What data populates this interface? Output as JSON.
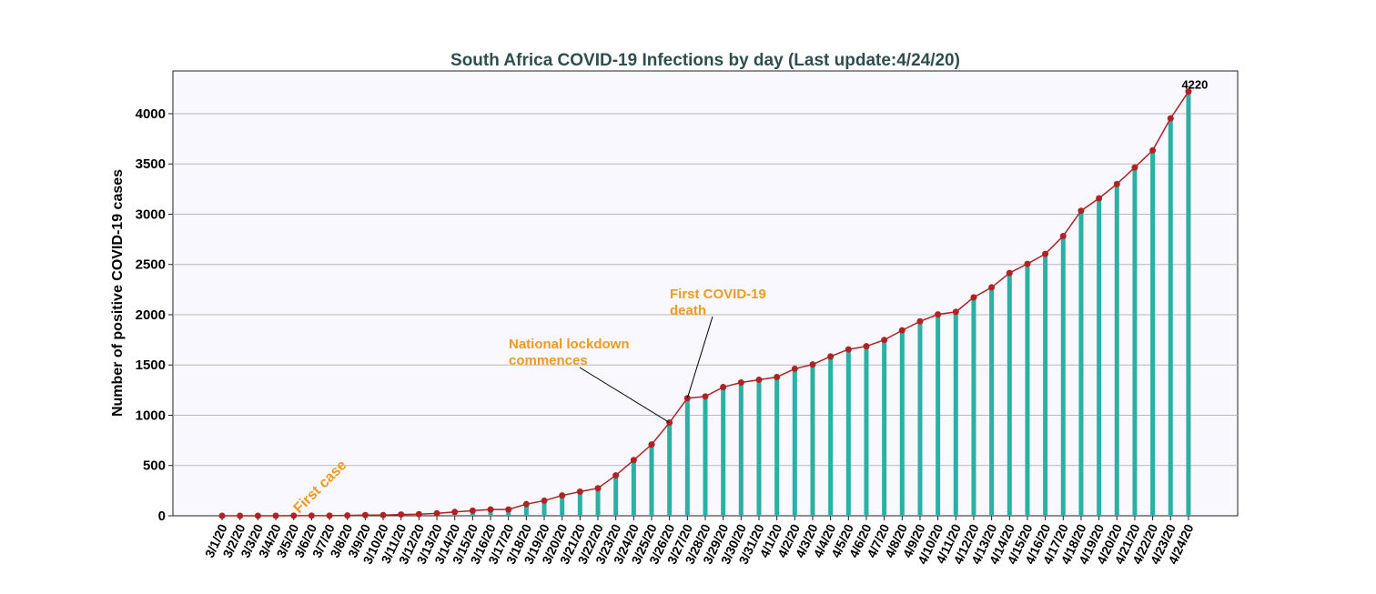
{
  "chart_data": {
    "type": "bar",
    "title": "South Africa COVID-19 Infections by day (Last update:4/24/20)",
    "y_label": "Number of positive COVID-19 cases",
    "categories": [
      "3/1/20",
      "3/2/20",
      "3/3/20",
      "3/4/20",
      "3/5/20",
      "3/6/20",
      "3/7/20",
      "3/8/20",
      "3/9/20",
      "3/10/20",
      "3/11/20",
      "3/12/20",
      "3/13/20",
      "3/14/20",
      "3/15/20",
      "3/16/20",
      "3/17/20",
      "3/18/20",
      "3/19/20",
      "3/20/20",
      "3/21/20",
      "3/22/20",
      "3/23/20",
      "3/24/20",
      "3/25/20",
      "3/26/20",
      "3/27/20",
      "3/28/20",
      "3/29/20",
      "3/30/20",
      "3/31/20",
      "4/1/20",
      "4/2/20",
      "4/3/20",
      "4/4/20",
      "4/5/20",
      "4/6/20",
      "4/7/20",
      "4/8/20",
      "4/9/20",
      "4/10/20",
      "4/11/20",
      "4/12/20",
      "4/13/20",
      "4/14/20",
      "4/15/20",
      "4/16/20",
      "4/17/20",
      "4/18/20",
      "4/19/20",
      "4/20/20",
      "4/21/20",
      "4/22/20",
      "4/23/20",
      "4/24/20"
    ],
    "values": [
      0,
      0,
      0,
      0,
      1,
      1,
      1,
      3,
      7,
      7,
      13,
      16,
      24,
      38,
      51,
      62,
      62,
      116,
      150,
      202,
      240,
      274,
      402,
      554,
      709,
      927,
      1170,
      1187,
      1280,
      1326,
      1353,
      1380,
      1462,
      1505,
      1585,
      1655,
      1686,
      1749,
      1845,
      1934,
      2003,
      2028,
      2173,
      2272,
      2415,
      2506,
      2605,
      2783,
      3034,
      3158,
      3300,
      3465,
      3635,
      3953,
      4220
    ],
    "color": "#2bb0a5",
    "line_color": "#b22222",
    "ylim": [
      0,
      4425
    ],
    "yticks": [
      0,
      500,
      1000,
      1500,
      2000,
      2500,
      3000,
      3500,
      4000
    ],
    "grid": true,
    "annotations": [
      {
        "text": [
          "First case"
        ]
      },
      {
        "text": [
          "National lockdown",
          "commences"
        ]
      },
      {
        "text": [
          "First COVID-19",
          "death"
        ]
      }
    ]
  }
}
